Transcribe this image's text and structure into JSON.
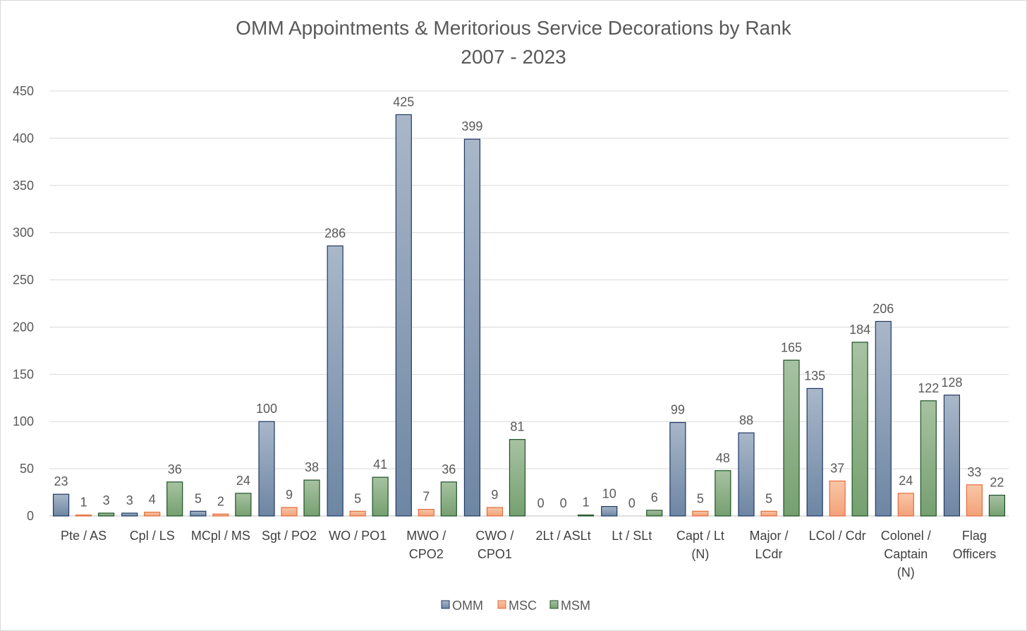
{
  "chart_data": {
    "type": "bar",
    "title": "OMM Appointments & Meritorious Service Decorations by Rank",
    "subtitle": "2007 - 2023",
    "xlabel": "",
    "ylabel": "",
    "ylim": [
      0,
      450
    ],
    "yticks": [
      0,
      50,
      100,
      150,
      200,
      250,
      300,
      350,
      400,
      450
    ],
    "grid": true,
    "legend_position": "bottom",
    "categories": [
      [
        "Pte / AS"
      ],
      [
        "Cpl / LS"
      ],
      [
        "MCpl / MS"
      ],
      [
        "Sgt / PO2"
      ],
      [
        "WO / PO1"
      ],
      [
        "MWO /",
        "CPO2"
      ],
      [
        "CWO /",
        "CPO1"
      ],
      [
        "2Lt / ASLt"
      ],
      [
        "Lt / SLt"
      ],
      [
        "Capt / Lt",
        "(N)"
      ],
      [
        "Major /",
        "LCdr"
      ],
      [
        "LCol / Cdr"
      ],
      [
        "Colonel /",
        "Captain",
        "(N)"
      ],
      [
        "Flag",
        "Officers"
      ]
    ],
    "series": [
      {
        "name": "OMM",
        "color": "#8497b0",
        "stroke": "#1f3864",
        "values": [
          23,
          3,
          5,
          100,
          286,
          425,
          399,
          0,
          10,
          99,
          88,
          135,
          206,
          128
        ]
      },
      {
        "name": "MSC",
        "color": "#f4b183",
        "stroke": "#e46c3c",
        "values": [
          1,
          4,
          2,
          9,
          5,
          7,
          9,
          0,
          0,
          5,
          5,
          37,
          24,
          33
        ]
      },
      {
        "name": "MSM",
        "color": "#8fb08a",
        "stroke": "#1e5128",
        "values": [
          3,
          36,
          24,
          38,
          41,
          36,
          81,
          1,
          6,
          48,
          165,
          184,
          122,
          22
        ]
      }
    ]
  }
}
